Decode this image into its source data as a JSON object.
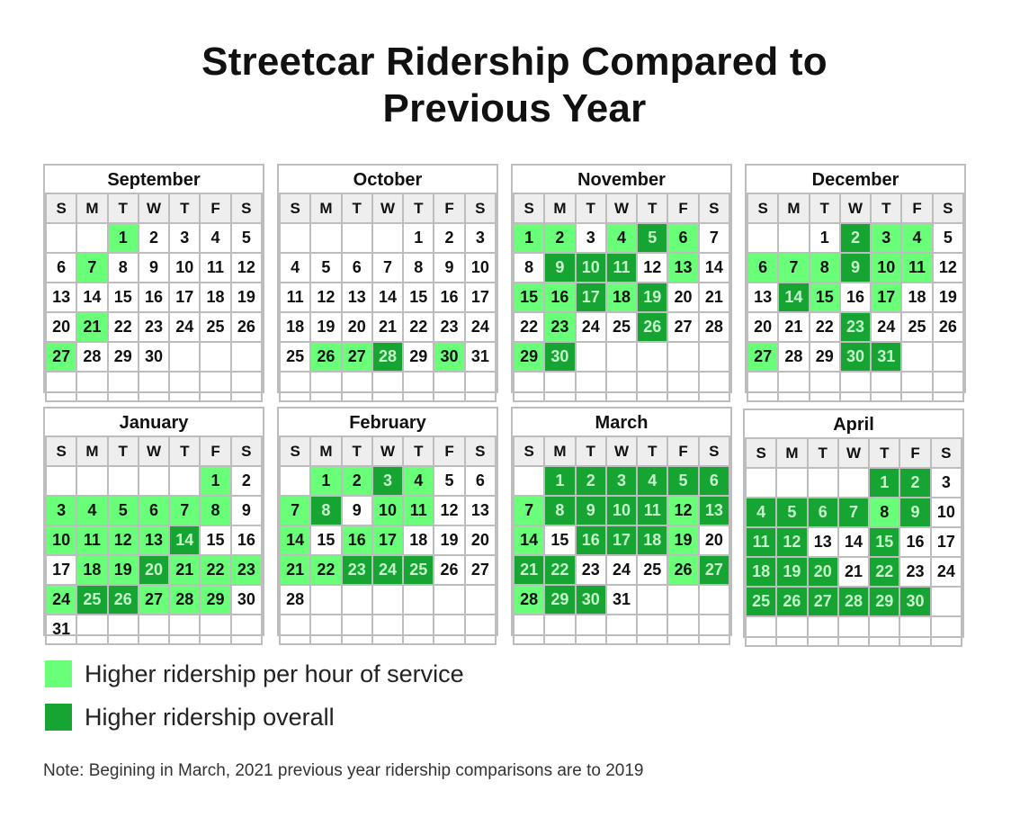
{
  "title": {
    "line1": "Streetcar Ridership Compared to",
    "line2": "Previous Year"
  },
  "weekday_labels": [
    "S",
    "M",
    "T",
    "W",
    "T",
    "F",
    "S"
  ],
  "colors": {
    "higher_per_hour": "#6aff78",
    "higher_overall": "#16a532"
  },
  "legend": {
    "higher_per_hour": "Higher ridership per hour of service",
    "higher_overall": "Higher ridership overall"
  },
  "note": "Note: Begining in March, 2021 previous year ridership comparisons are to 2019",
  "chart_data": {
    "type": "table",
    "encoding": {
      "light": "Higher ridership per hour of service",
      "dark": "Higher ridership overall"
    },
    "months": [
      {
        "name": "September",
        "first_weekday": 2,
        "days": 30,
        "light": [
          1,
          7,
          21,
          27
        ],
        "dark": []
      },
      {
        "name": "October",
        "first_weekday": 4,
        "days": 31,
        "light": [
          26,
          27,
          30
        ],
        "dark": [
          28
        ]
      },
      {
        "name": "November",
        "first_weekday": 0,
        "days": 30,
        "light": [
          1,
          2,
          4,
          6,
          13,
          15,
          16,
          18,
          23,
          29
        ],
        "dark": [
          5,
          9,
          10,
          11,
          17,
          19,
          26,
          30
        ]
      },
      {
        "name": "December",
        "first_weekday": 2,
        "days": 31,
        "light": [
          3,
          4,
          6,
          7,
          8,
          10,
          11,
          15,
          17,
          27
        ],
        "dark": [
          2,
          9,
          14,
          23,
          30,
          31
        ]
      },
      {
        "name": "January",
        "first_weekday": 5,
        "days": 31,
        "light": [
          1,
          3,
          4,
          5,
          6,
          7,
          8,
          10,
          11,
          12,
          13,
          18,
          19,
          21,
          22,
          23,
          24,
          27,
          28,
          29
        ],
        "dark": [
          14,
          20,
          25,
          26
        ]
      },
      {
        "name": "February",
        "first_weekday": 1,
        "days": 28,
        "light": [
          1,
          2,
          4,
          7,
          10,
          11,
          14,
          16,
          17,
          21,
          22
        ],
        "dark": [
          3,
          8,
          23,
          24,
          25
        ]
      },
      {
        "name": "March",
        "first_weekday": 1,
        "days": 31,
        "light": [
          7,
          12,
          14,
          19,
          26,
          28
        ],
        "dark": [
          1,
          2,
          3,
          4,
          5,
          6,
          8,
          9,
          10,
          11,
          13,
          16,
          17,
          18,
          21,
          22,
          27,
          29,
          30
        ]
      },
      {
        "name": "April",
        "first_weekday": 4,
        "days": 30,
        "light": [
          8
        ],
        "dark": [
          1,
          2,
          4,
          5,
          6,
          7,
          9,
          11,
          12,
          15,
          18,
          19,
          20,
          22,
          25,
          26,
          27,
          28,
          29,
          30
        ]
      }
    ]
  }
}
